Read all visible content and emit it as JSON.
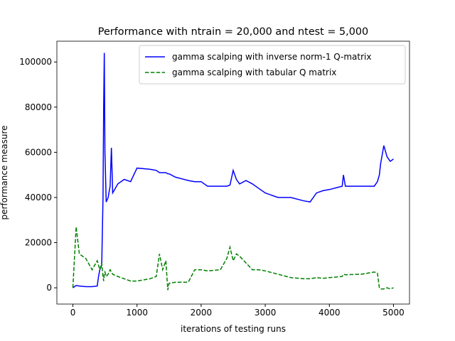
{
  "chart_data": {
    "type": "line",
    "title": "Performance with ntrain = 20,000 and ntest = 5,000",
    "xlabel": "iterations of testing runs",
    "ylabel": "performance measure",
    "x": [
      0,
      50,
      100,
      200,
      300,
      380,
      400,
      420,
      450,
      470,
      480,
      490,
      500,
      520,
      550,
      580,
      600,
      620,
      700,
      800,
      900,
      1000,
      1200,
      1300,
      1350,
      1400,
      1450,
      1480,
      1500,
      1600,
      1800,
      1900,
      2000,
      2100,
      2300,
      2400,
      2450,
      2500,
      2550,
      2600,
      2700,
      2800,
      2900,
      3000,
      3200,
      3400,
      3600,
      3700,
      3800,
      3900,
      4000,
      4200,
      4220,
      4250,
      4500,
      4700,
      4750,
      4780,
      4800,
      4850,
      4900,
      4950,
      5000
    ],
    "series": [
      {
        "name": "gamma scalping with inverse norm-1 Q-matrix",
        "color": "#0000ff",
        "linestyle": "solid",
        "values": [
          0,
          1000,
          800,
          500,
          500,
          800,
          5000,
          8000,
          10000,
          40000,
          80000,
          104000,
          60000,
          38000,
          40000,
          45000,
          62000,
          42000,
          46000,
          48000,
          47000,
          53000,
          52500,
          52000,
          51000,
          51000,
          51000,
          50500,
          50500,
          49000,
          47500,
          47000,
          47000,
          45000,
          45000,
          45000,
          45500,
          52000,
          48000,
          46000,
          47500,
          46000,
          44000,
          42000,
          40000,
          40000,
          38500,
          38000,
          42000,
          43000,
          43500,
          45000,
          50000,
          45000,
          45000,
          45000,
          47000,
          50000,
          55000,
          63000,
          58000,
          56000,
          57000
        ]
      },
      {
        "name": "gamma scalping with tabular Q matrix",
        "color": "#008000",
        "linestyle": "dashed",
        "values": [
          0,
          27000,
          15000,
          13000,
          8000,
          12000,
          10000,
          8000,
          11000,
          5000,
          3000,
          6000,
          7000,
          5000,
          6000,
          8000,
          7000,
          6000,
          5000,
          4000,
          3000,
          3000,
          4000,
          5000,
          15000,
          8000,
          12000,
          -1000,
          2000,
          2500,
          2500,
          8000,
          8000,
          7500,
          8000,
          13000,
          18000,
          12000,
          15000,
          14000,
          11000,
          8000,
          8000,
          7500,
          6000,
          4500,
          4000,
          4000,
          4500,
          4200,
          4500,
          5000,
          6000,
          5800,
          6000,
          7000,
          6500,
          0,
          -500,
          -500,
          0,
          -500,
          0
        ]
      }
    ],
    "xlim": [
      -250,
      5250
    ],
    "xticks": [
      0,
      1000,
      2000,
      3000,
      4000,
      5000
    ],
    "ylim": [
      -7200,
      109200
    ],
    "yticks": [
      0,
      20000,
      40000,
      60000,
      80000,
      100000
    ],
    "legend": "upper right",
    "grid": false
  }
}
